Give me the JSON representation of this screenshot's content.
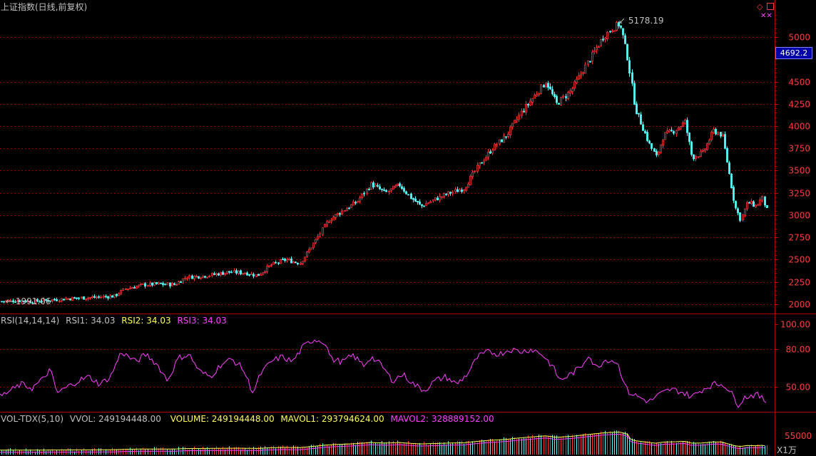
{
  "panel_title": "上证指数(日线,前复权)",
  "current_price_badge": "4692.2",
  "rsi_legend": {
    "title": "RSI(14,14,14)",
    "rsi1": "RSI1: 34.03",
    "rsi2": "RSI2: 34.03",
    "rsi3": "RSI3: 34.03"
  },
  "vol_legend": {
    "title": "VOL-TDX(5,10)",
    "vvol": "VVOL: 249194448.00",
    "volume": "VOLUME: 249194448.00",
    "mavol1": "MAVOL1: 293794624.00",
    "mavol2": "MAVOL2: 328889152.00"
  },
  "vol_unit": "X1万",
  "vol_axis_label": "55000",
  "max_label": "5178.19",
  "min_label": "1991.06",
  "colors": {
    "up": "#ff3232",
    "down": "#54ffff",
    "grid": "#8b0000",
    "rsi": "#ff40ff",
    "border": "#b00000",
    "axis_text": "#ff3c3c"
  },
  "chart_data": [
    {
      "type": "candlestick",
      "title": "上证指数(日线,前复权)",
      "y_ticks": [
        2000,
        2250,
        2500,
        2750,
        3000,
        3250,
        3500,
        3750,
        4000,
        4250,
        4500,
        5000
      ],
      "ylim": [
        1910,
        5290
      ],
      "annotations": [
        {
          "label": "5178.19",
          "value": 5178.19,
          "type": "max"
        },
        {
          "label": "1991.06",
          "value": 1991.06,
          "type": "min"
        }
      ],
      "close_anchors": [
        [
          0,
          2030
        ],
        [
          20,
          2040
        ],
        [
          45,
          2030
        ],
        [
          70,
          2045
        ],
        [
          100,
          2065
        ],
        [
          130,
          2075
        ],
        [
          160,
          2090
        ],
        [
          175,
          2170
        ],
        [
          200,
          2215
        ],
        [
          220,
          2225
        ],
        [
          245,
          2220
        ],
        [
          260,
          2300
        ],
        [
          290,
          2320
        ],
        [
          320,
          2360
        ],
        [
          345,
          2350
        ],
        [
          360,
          2320
        ],
        [
          380,
          2440
        ],
        [
          400,
          2500
        ],
        [
          420,
          2460
        ],
        [
          440,
          2690
        ],
        [
          460,
          2940
        ],
        [
          480,
          3050
        ],
        [
          500,
          3150
        ],
        [
          520,
          3350
        ],
        [
          540,
          3250
        ],
        [
          560,
          3340
        ],
        [
          575,
          3200
        ],
        [
          590,
          3100
        ],
        [
          610,
          3180
        ],
        [
          630,
          3250
        ],
        [
          650,
          3300
        ],
        [
          670,
          3550
        ],
        [
          690,
          3750
        ],
        [
          710,
          3900
        ],
        [
          730,
          4150
        ],
        [
          750,
          4350
        ],
        [
          765,
          4500
        ],
        [
          780,
          4250
        ],
        [
          800,
          4400
        ],
        [
          815,
          4600
        ],
        [
          830,
          4800
        ],
        [
          845,
          5000
        ],
        [
          858,
          5100
        ],
        [
          868,
          5150
        ],
        [
          872,
          5050
        ],
        [
          880,
          4750
        ],
        [
          890,
          4200
        ],
        [
          900,
          4000
        ],
        [
          910,
          3800
        ],
        [
          920,
          3650
        ],
        [
          930,
          3900
        ],
        [
          945,
          3950
        ],
        [
          960,
          4050
        ],
        [
          970,
          3650
        ],
        [
          985,
          3700
        ],
        [
          1000,
          3950
        ],
        [
          1012,
          3900
        ],
        [
          1020,
          3550
        ],
        [
          1030,
          3100
        ],
        [
          1038,
          2950
        ],
        [
          1048,
          3150
        ],
        [
          1060,
          3100
        ],
        [
          1068,
          3200
        ],
        [
          1075,
          3050
        ]
      ]
    },
    {
      "type": "line",
      "title": "RSI(14,14,14)",
      "series": [
        {
          "name": "RSI1",
          "values": [
            34.03
          ]
        },
        {
          "name": "RSI2",
          "values": [
            34.03
          ]
        },
        {
          "name": "RSI3",
          "values": [
            34.03
          ]
        }
      ],
      "y_ticks": [
        50.0,
        80.0,
        100.0
      ],
      "ylim": [
        30,
        100
      ],
      "anchors": [
        [
          0,
          42
        ],
        [
          15,
          47
        ],
        [
          30,
          52
        ],
        [
          45,
          49
        ],
        [
          60,
          56
        ],
        [
          70,
          64
        ],
        [
          80,
          45
        ],
        [
          95,
          50
        ],
        [
          110,
          55
        ],
        [
          125,
          58
        ],
        [
          140,
          52
        ],
        [
          155,
          58
        ],
        [
          170,
          78
        ],
        [
          180,
          74
        ],
        [
          190,
          70
        ],
        [
          205,
          76
        ],
        [
          220,
          68
        ],
        [
          235,
          55
        ],
        [
          250,
          73
        ],
        [
          265,
          76
        ],
        [
          280,
          62
        ],
        [
          295,
          58
        ],
        [
          310,
          68
        ],
        [
          325,
          72
        ],
        [
          340,
          65
        ],
        [
          355,
          45
        ],
        [
          365,
          60
        ],
        [
          380,
          70
        ],
        [
          395,
          74
        ],
        [
          410,
          70
        ],
        [
          425,
          82
        ],
        [
          440,
          88
        ],
        [
          455,
          86
        ],
        [
          465,
          72
        ],
        [
          480,
          70
        ],
        [
          495,
          75
        ],
        [
          510,
          67
        ],
        [
          520,
          74
        ],
        [
          535,
          67
        ],
        [
          550,
          55
        ],
        [
          565,
          60
        ],
        [
          580,
          52
        ],
        [
          595,
          47
        ],
        [
          610,
          55
        ],
        [
          625,
          58
        ],
        [
          640,
          52
        ],
        [
          655,
          60
        ],
        [
          670,
          74
        ],
        [
          685,
          78
        ],
        [
          700,
          76
        ],
        [
          715,
          80
        ],
        [
          730,
          78
        ],
        [
          745,
          80
        ],
        [
          760,
          76
        ],
        [
          775,
          66
        ],
        [
          785,
          55
        ],
        [
          800,
          60
        ],
        [
          815,
          66
        ],
        [
          825,
          76
        ],
        [
          835,
          65
        ],
        [
          850,
          72
        ],
        [
          865,
          70
        ],
        [
          880,
          46
        ],
        [
          895,
          42
        ],
        [
          910,
          38
        ],
        [
          925,
          44
        ],
        [
          940,
          48
        ],
        [
          955,
          46
        ],
        [
          970,
          42
        ],
        [
          985,
          48
        ],
        [
          1000,
          52
        ],
        [
          1015,
          52
        ],
        [
          1025,
          45
        ],
        [
          1035,
          36
        ],
        [
          1045,
          42
        ],
        [
          1060,
          44
        ],
        [
          1075,
          38
        ]
      ]
    },
    {
      "type": "bar",
      "title": "VOL-TDX(5,10)",
      "series": [
        {
          "name": "VVOL",
          "values": [
            249194448.0
          ]
        },
        {
          "name": "VOLUME",
          "values": [
            249194448.0
          ]
        },
        {
          "name": "MAVOL1",
          "values": [
            293794624.0
          ]
        },
        {
          "name": "MAVOL2",
          "values": [
            328889152.0
          ]
        }
      ],
      "y_ticks": [
        55000
      ],
      "unit": "X1万"
    }
  ]
}
